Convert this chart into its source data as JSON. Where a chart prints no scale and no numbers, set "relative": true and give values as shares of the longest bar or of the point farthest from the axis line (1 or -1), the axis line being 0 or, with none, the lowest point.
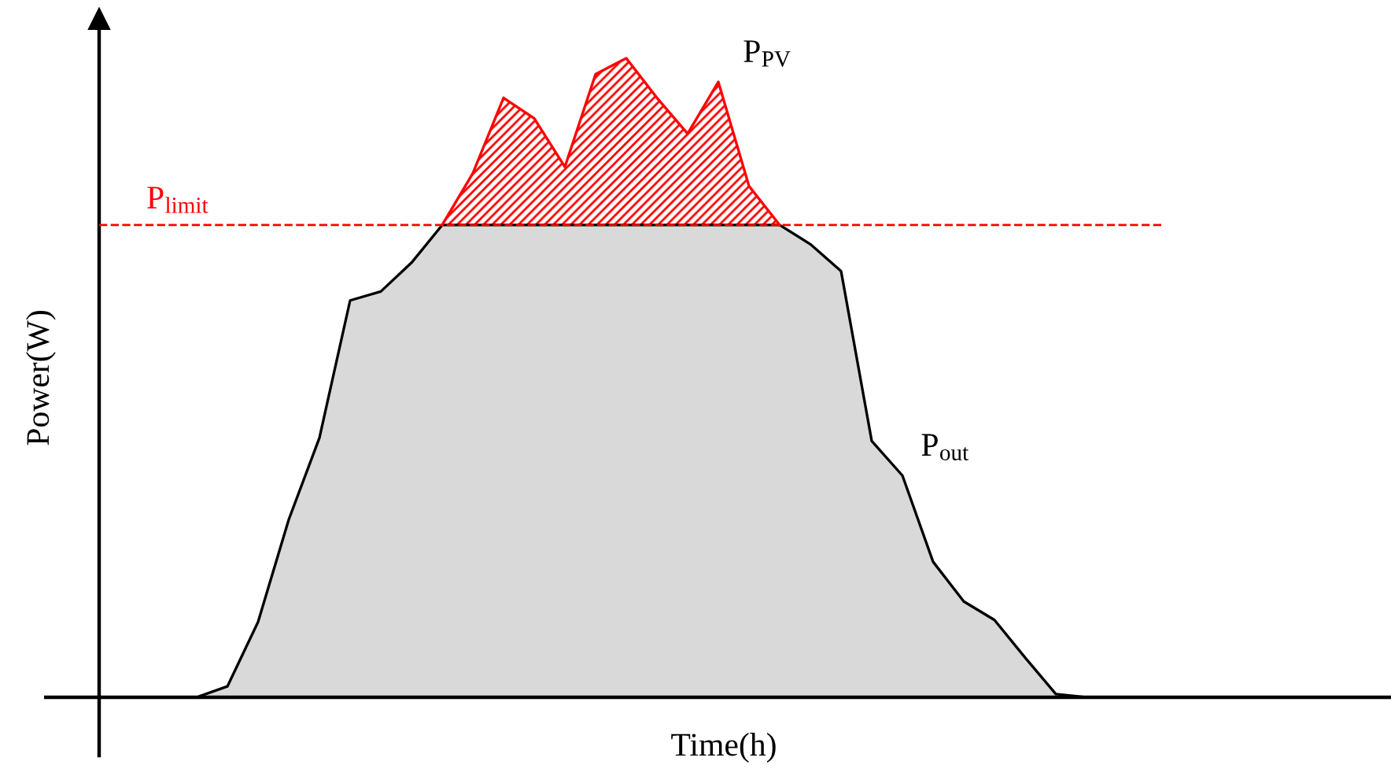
{
  "chart_data": {
    "type": "area",
    "relative": true,
    "xlabel": "Time(h)",
    "ylabel": "Power(W)",
    "legend": false,
    "grid": false,
    "categories": [
      null,
      null,
      null,
      null,
      null,
      null,
      null,
      null,
      null,
      null,
      null,
      null,
      null,
      null,
      null,
      null,
      null,
      null,
      null,
      null,
      null,
      null,
      null,
      null,
      null,
      null,
      null,
      null,
      null,
      null
    ],
    "series": [
      {
        "name": "P$_{out}$",
        "color": "#d9d9d9",
        "values": [
          0,
          0.017,
          0.118,
          0.278,
          0.406,
          0.621,
          0.635,
          0.68,
          0.739,
          0.739,
          0.739,
          0.739,
          0.739,
          0.739,
          0.739,
          0.739,
          0.739,
          0.739,
          0.739,
          0.739,
          0.709,
          0.667,
          0.401,
          0.347,
          0.212,
          0.15,
          0.121,
          0.062,
          0.005,
          0
        ]
      },
      {
        "name": "P$_{PV}$",
        "color": "#ff0000",
        "values": [
          null,
          null,
          null,
          null,
          null,
          null,
          null,
          null,
          0.739,
          0.82,
          0.938,
          0.906,
          0.83,
          0.975,
          1,
          0.938,
          0.882,
          0.963,
          0.8,
          0.739,
          null,
          null,
          null,
          null,
          null,
          null,
          null,
          null,
          null,
          null
        ]
      }
    ],
    "ref_lines": [
      {
        "axis": "y",
        "value": 0.739,
        "label": "P$_{limit}$",
        "color": "#ff0000",
        "line_style": "dashed"
      }
    ]
  }
}
